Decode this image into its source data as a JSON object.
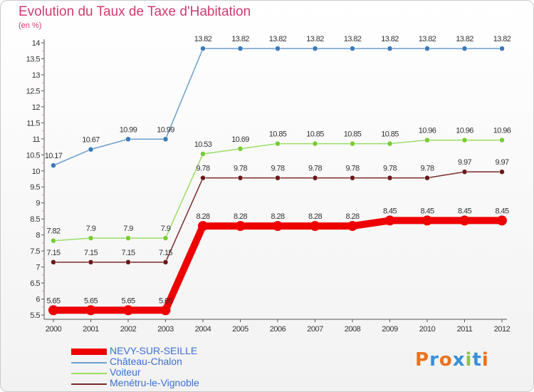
{
  "header": {
    "title": "Evolution du Taux de Taxe d'Habitation",
    "unit": "(en %)"
  },
  "logo": {
    "text": "Proxiti",
    "colors": [
      "#e8731f",
      "#3a8fd6",
      "#e8731f",
      "#3a8fd6",
      "#8cc63f",
      "#3a8fd6",
      "#e8731f"
    ]
  },
  "chart_data": {
    "type": "line",
    "title": "Evolution du Taux de Taxe d'Habitation",
    "ylabel": "(en %)",
    "xlabel": "",
    "x": [
      "2000",
      "2001",
      "2002",
      "2003",
      "2004",
      "2005",
      "2006",
      "2007",
      "2008",
      "2009",
      "2010",
      "2011",
      "2012"
    ],
    "ylim": [
      5.5,
      14
    ],
    "yticks": [
      "5.5",
      "6",
      "6.5",
      "7",
      "7.5",
      "8",
      "8.5",
      "9",
      "9.5",
      "10",
      "10.5",
      "11",
      "11.5",
      "12",
      "12.5",
      "13",
      "13.5",
      "14"
    ],
    "grid": false,
    "legend_position": "bottom-left",
    "series": [
      {
        "name": "NEVY-SUR-SEILLE",
        "color": "#ee0000",
        "marker_color": "#ee0000",
        "values": [
          5.65,
          5.65,
          5.65,
          5.65,
          8.28,
          8.28,
          8.28,
          8.28,
          8.28,
          8.45,
          8.45,
          8.45,
          8.45
        ],
        "labels": [
          "5.65",
          "5.65",
          "5.65",
          "5.65",
          "8.28",
          "8.28",
          "8.28",
          "8.28",
          "8.28",
          "8.45",
          "8.45",
          "8.45",
          "8.45"
        ]
      },
      {
        "name": "Château-Chalon",
        "color": "#6a9fd0",
        "marker_color": "#3a7ab8",
        "values": [
          10.17,
          10.67,
          10.99,
          10.99,
          13.82,
          13.82,
          13.82,
          13.82,
          13.82,
          13.82,
          13.82,
          13.82,
          13.82
        ],
        "labels": [
          "10.17",
          "10.67",
          "10.99",
          "10.99",
          "13.82",
          "13.82",
          "13.82",
          "13.82",
          "13.82",
          "13.82",
          "13.82",
          "13.82",
          "13.82"
        ]
      },
      {
        "name": "Voiteur",
        "color": "#99dd66",
        "marker_color": "#77cc33",
        "values": [
          7.82,
          7.9,
          7.9,
          7.9,
          10.53,
          10.69,
          10.85,
          10.85,
          10.85,
          10.85,
          10.96,
          10.96,
          10.96
        ],
        "labels": [
          "7.82",
          "7.9",
          "7.9",
          "7.9",
          "10.53",
          "10.69",
          "10.85",
          "10.85",
          "10.85",
          "10.85",
          "10.96",
          "10.96",
          "10.96"
        ]
      },
      {
        "name": "Menétru-le-Vignoble",
        "color": "#7a2a2a",
        "marker_color": "#6a1a1a",
        "values": [
          7.15,
          7.15,
          7.15,
          7.15,
          9.78,
          9.78,
          9.78,
          9.78,
          9.78,
          9.78,
          9.78,
          9.97,
          9.97
        ],
        "labels": [
          "7.15",
          "7.15",
          "7.15",
          "7.15",
          "9.78",
          "9.78",
          "9.78",
          "9.78",
          "9.78",
          "9.78",
          "9.78",
          "9.97",
          "9.97"
        ]
      }
    ]
  }
}
